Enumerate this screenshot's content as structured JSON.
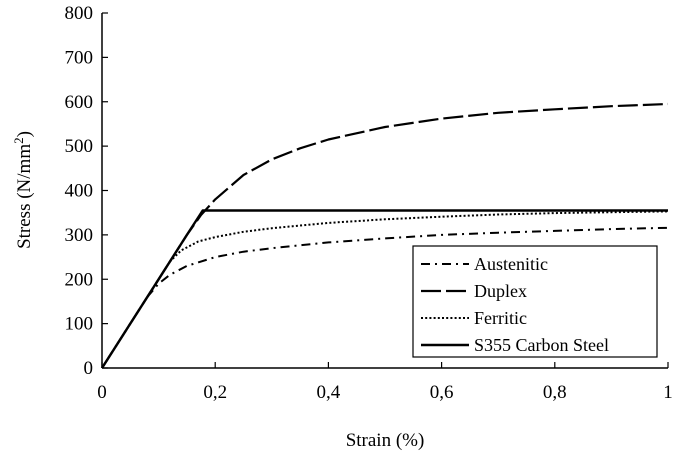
{
  "chart_data": {
    "type": "line",
    "xlabel": "Strain (%)",
    "ylabel_main": "Stress (N/mm",
    "ylabel_sup": "2",
    "ylabel_close": ")",
    "xlim": [
      0,
      1
    ],
    "ylim": [
      0,
      800
    ],
    "xticks": [
      0,
      0.2,
      0.4,
      0.6,
      0.8,
      1
    ],
    "xtick_labels": [
      "0",
      "0,2",
      "0,4",
      "0,6",
      "0,8",
      "1"
    ],
    "yticks": [
      0,
      100,
      200,
      300,
      400,
      500,
      600,
      700,
      800
    ],
    "ytick_labels": [
      "0",
      "100",
      "200",
      "300",
      "400",
      "500",
      "600",
      "700",
      "800"
    ],
    "grid": false,
    "legend_position": "bottom-right",
    "series": [
      {
        "name": "Austenitic",
        "style": "dashdot",
        "color": "#000000",
        "x": [
          0,
          0.05,
          0.08,
          0.1,
          0.12,
          0.15,
          0.2,
          0.25,
          0.3,
          0.4,
          0.5,
          0.6,
          0.7,
          0.8,
          0.9,
          1.0
        ],
        "y": [
          0,
          100,
          160,
          190,
          210,
          230,
          250,
          262,
          270,
          283,
          292,
          300,
          305,
          309,
          313,
          316
        ]
      },
      {
        "name": "Duplex",
        "style": "dashed",
        "color": "#000000",
        "x": [
          0,
          0.05,
          0.1,
          0.15,
          0.175,
          0.2,
          0.25,
          0.3,
          0.35,
          0.4,
          0.5,
          0.6,
          0.7,
          0.8,
          0.9,
          1.0
        ],
        "y": [
          0,
          100,
          200,
          300,
          345,
          380,
          435,
          470,
          495,
          515,
          543,
          562,
          575,
          583,
          590,
          595
        ]
      },
      {
        "name": "Ferritic",
        "style": "dotted",
        "color": "#000000",
        "x": [
          0,
          0.05,
          0.08,
          0.1,
          0.12,
          0.14,
          0.17,
          0.2,
          0.25,
          0.3,
          0.4,
          0.5,
          0.6,
          0.7,
          0.8,
          0.9,
          1.0
        ],
        "y": [
          0,
          100,
          160,
          200,
          240,
          265,
          285,
          295,
          307,
          315,
          327,
          335,
          341,
          346,
          349,
          351,
          353
        ]
      },
      {
        "name": "S355 Carbon Steel",
        "style": "solid",
        "color": "#000000",
        "x": [
          0,
          0.05,
          0.1,
          0.15,
          0.178,
          0.2,
          0.4,
          0.6,
          0.8,
          1.0
        ],
        "y": [
          0,
          100,
          200,
          300,
          355,
          355,
          355,
          355,
          355,
          355
        ]
      }
    ]
  }
}
